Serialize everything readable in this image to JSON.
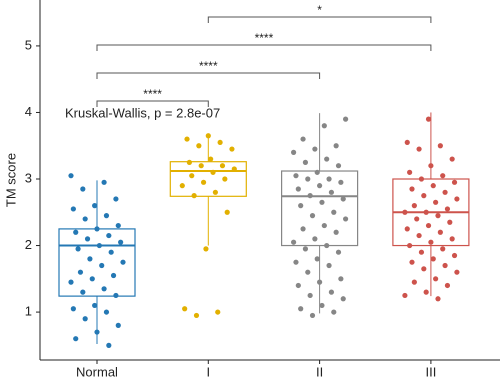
{
  "chart_data": {
    "type": "box",
    "y_label": "TM score",
    "categories": [
      "Normal",
      "I",
      "II",
      "III"
    ],
    "ylim": [
      0.28,
      5.69
    ],
    "yticks": [
      1,
      2,
      3,
      4,
      5
    ],
    "annotation": "Kruskal-Wallis, p = 2.8e-07",
    "series": [
      {
        "name": "Normal",
        "color": "#2478b4",
        "whisker_low": 0.52,
        "q1": 1.24,
        "median": 2.0,
        "q3": 2.25,
        "whisker_high": 2.98,
        "points": [
          3.05,
          2.95,
          2.85,
          2.7,
          2.6,
          2.55,
          2.45,
          2.4,
          2.3,
          2.25,
          2.2,
          2.15,
          2.1,
          2.05,
          2.0,
          1.95,
          1.9,
          1.8,
          1.75,
          1.7,
          1.6,
          1.55,
          1.5,
          1.45,
          1.35,
          1.3,
          1.25,
          1.1,
          1.05,
          1.0,
          0.9,
          0.8,
          0.7,
          0.6,
          0.5
        ]
      },
      {
        "name": "I",
        "color": "#e2b000",
        "whisker_low": 2.0,
        "q1": 2.74,
        "median": 3.12,
        "q3": 3.26,
        "whisker_high": 3.65,
        "points": [
          3.65,
          3.6,
          3.55,
          3.5,
          3.45,
          3.3,
          3.25,
          3.2,
          3.2,
          3.15,
          3.1,
          3.05,
          3.0,
          2.95,
          2.9,
          2.8,
          2.75,
          2.5,
          1.95,
          1.05,
          1.0,
          0.95
        ]
      },
      {
        "name": "II",
        "color": "#868686",
        "whisker_low": 0.98,
        "q1": 2.0,
        "median": 2.74,
        "q3": 3.12,
        "whisker_high": 3.99,
        "points": [
          3.9,
          3.8,
          3.6,
          3.5,
          3.45,
          3.4,
          3.3,
          3.25,
          3.2,
          3.1,
          3.05,
          3.0,
          3.0,
          2.95,
          2.9,
          2.85,
          2.8,
          2.75,
          2.7,
          2.65,
          2.6,
          2.5,
          2.45,
          2.4,
          2.3,
          2.25,
          2.2,
          2.1,
          2.05,
          2.0,
          1.95,
          1.9,
          1.8,
          1.75,
          1.7,
          1.6,
          1.5,
          1.45,
          1.4,
          1.3,
          1.25,
          1.2,
          1.1,
          1.05,
          1.0,
          0.95
        ]
      },
      {
        "name": "III",
        "color": "#cd534c",
        "whisker_low": 1.24,
        "q1": 2.0,
        "median": 2.5,
        "q3": 3.0,
        "whisker_high": 4.0,
        "points": [
          3.9,
          3.55,
          3.5,
          3.45,
          3.3,
          3.2,
          3.1,
          3.05,
          3.0,
          2.95,
          2.9,
          2.85,
          2.8,
          2.75,
          2.7,
          2.65,
          2.6,
          2.55,
          2.5,
          2.5,
          2.45,
          2.4,
          2.35,
          2.3,
          2.25,
          2.2,
          2.15,
          2.1,
          2.05,
          2.0,
          1.95,
          1.9,
          1.85,
          1.8,
          1.75,
          1.7,
          1.65,
          1.6,
          1.5,
          1.45,
          1.4,
          1.3,
          1.25,
          1.2
        ]
      }
    ],
    "comparisons": [
      {
        "groups": [
          0,
          1
        ],
        "label": "****"
      },
      {
        "groups": [
          0,
          2
        ],
        "label": "****"
      },
      {
        "groups": [
          0,
          3
        ],
        "label": "****"
      },
      {
        "groups": [
          1,
          3
        ],
        "label": "*"
      }
    ]
  }
}
